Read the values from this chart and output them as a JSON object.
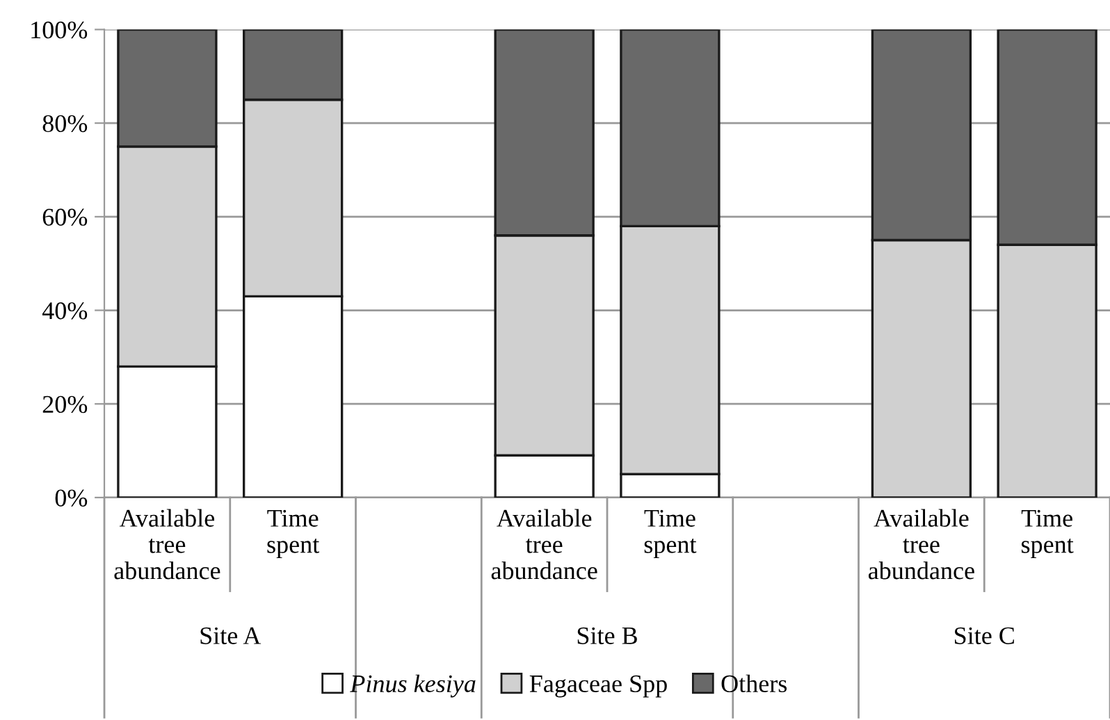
{
  "chart_data": {
    "type": "bar",
    "stacked": true,
    "categories": [
      "Available\ntree\nabundance",
      "Time\nspent",
      null,
      "Available\ntree\nabundance",
      "Time\nspent",
      null,
      "Available\ntree\nabundance",
      "Time\nspent"
    ],
    "series": [
      {
        "name": "Pinus kesiya",
        "color": "#ffffff",
        "values": [
          28,
          43,
          null,
          9,
          5,
          null,
          0,
          0
        ]
      },
      {
        "name": "Fagaceae Spp",
        "color": "#d0d0d0",
        "values": [
          47,
          42,
          null,
          47,
          53,
          null,
          55,
          54
        ]
      },
      {
        "name": "Others",
        "color": "#696969",
        "values": [
          25,
          15,
          null,
          44,
          42,
          null,
          45,
          46
        ]
      }
    ],
    "annotations": [
      "Site A",
      "Site B",
      "Site C"
    ],
    "ylim": [
      0,
      100
    ],
    "yticks": [
      {
        "value": 0,
        "label": "0%"
      },
      {
        "value": 20,
        "label": "20%"
      },
      {
        "value": 40,
        "label": "40%"
      },
      {
        "value": 60,
        "label": "60%"
      },
      {
        "value": 80,
        "label": "80%"
      },
      {
        "value": 100,
        "label": "100%"
      }
    ],
    "grid": "y",
    "legend": "bottom"
  }
}
